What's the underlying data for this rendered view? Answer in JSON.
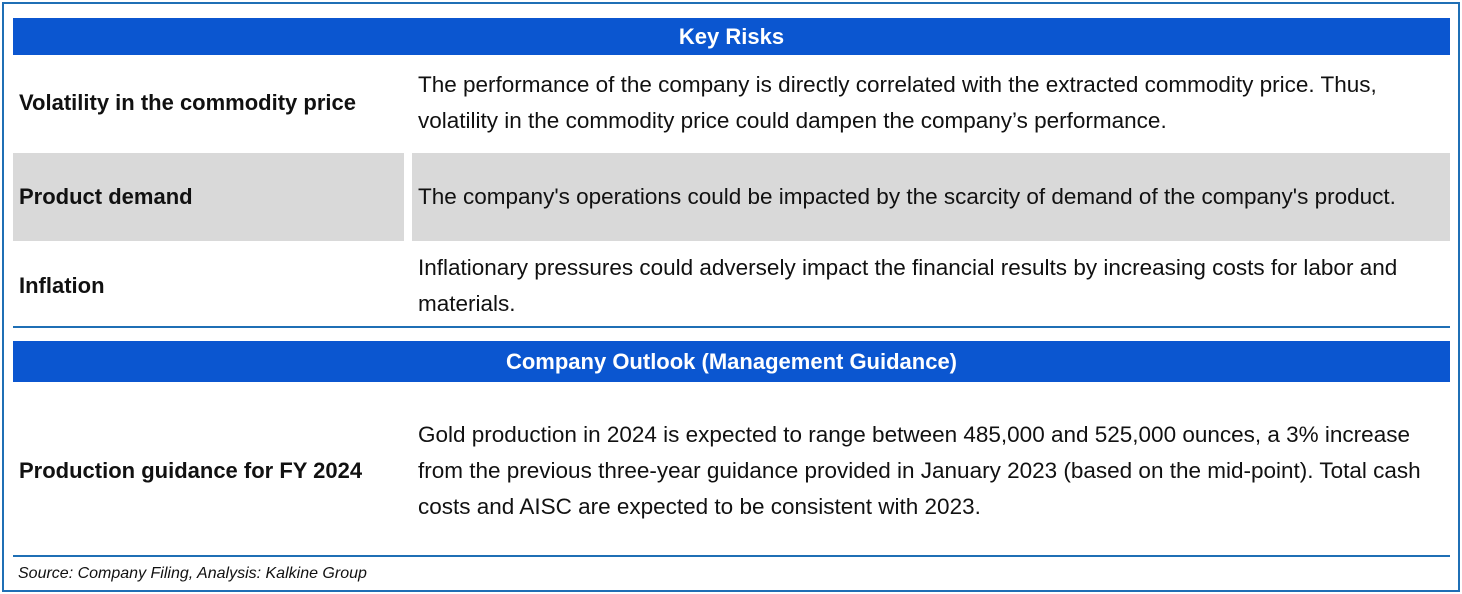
{
  "key_risks": {
    "header": "Key Risks",
    "rows": [
      {
        "label": "Volatility in the commodity price",
        "description": "The performance of the company is directly correlated with the extracted commodity price. Thus, volatility in the commodity price could dampen the company’s performance."
      },
      {
        "label": "Product demand",
        "description": "The company's operations could be impacted by the scarcity of demand of the company's product."
      },
      {
        "label": "Inflation",
        "description": "Inflationary pressures could adversely impact the financial results by increasing costs for labor and materials."
      }
    ]
  },
  "outlook": {
    "header": "Company Outlook (Management Guidance)",
    "rows": [
      {
        "label": "Production guidance for  FY 2024",
        "description": "Gold production in 2024 is expected to range between 485,000 and 525,000 ounces, a 3% increase from the previous three-year guidance provided in January 2023 (based on the mid-point). Total cash costs and AISC are expected to be consistent with 2023."
      }
    ]
  },
  "source": "Source: Company Filing, Analysis: Kalkine Group",
  "colors": {
    "header_band": "#0b56d0",
    "border": "#1f6fb5",
    "shaded_row": "#d9d9d9"
  }
}
